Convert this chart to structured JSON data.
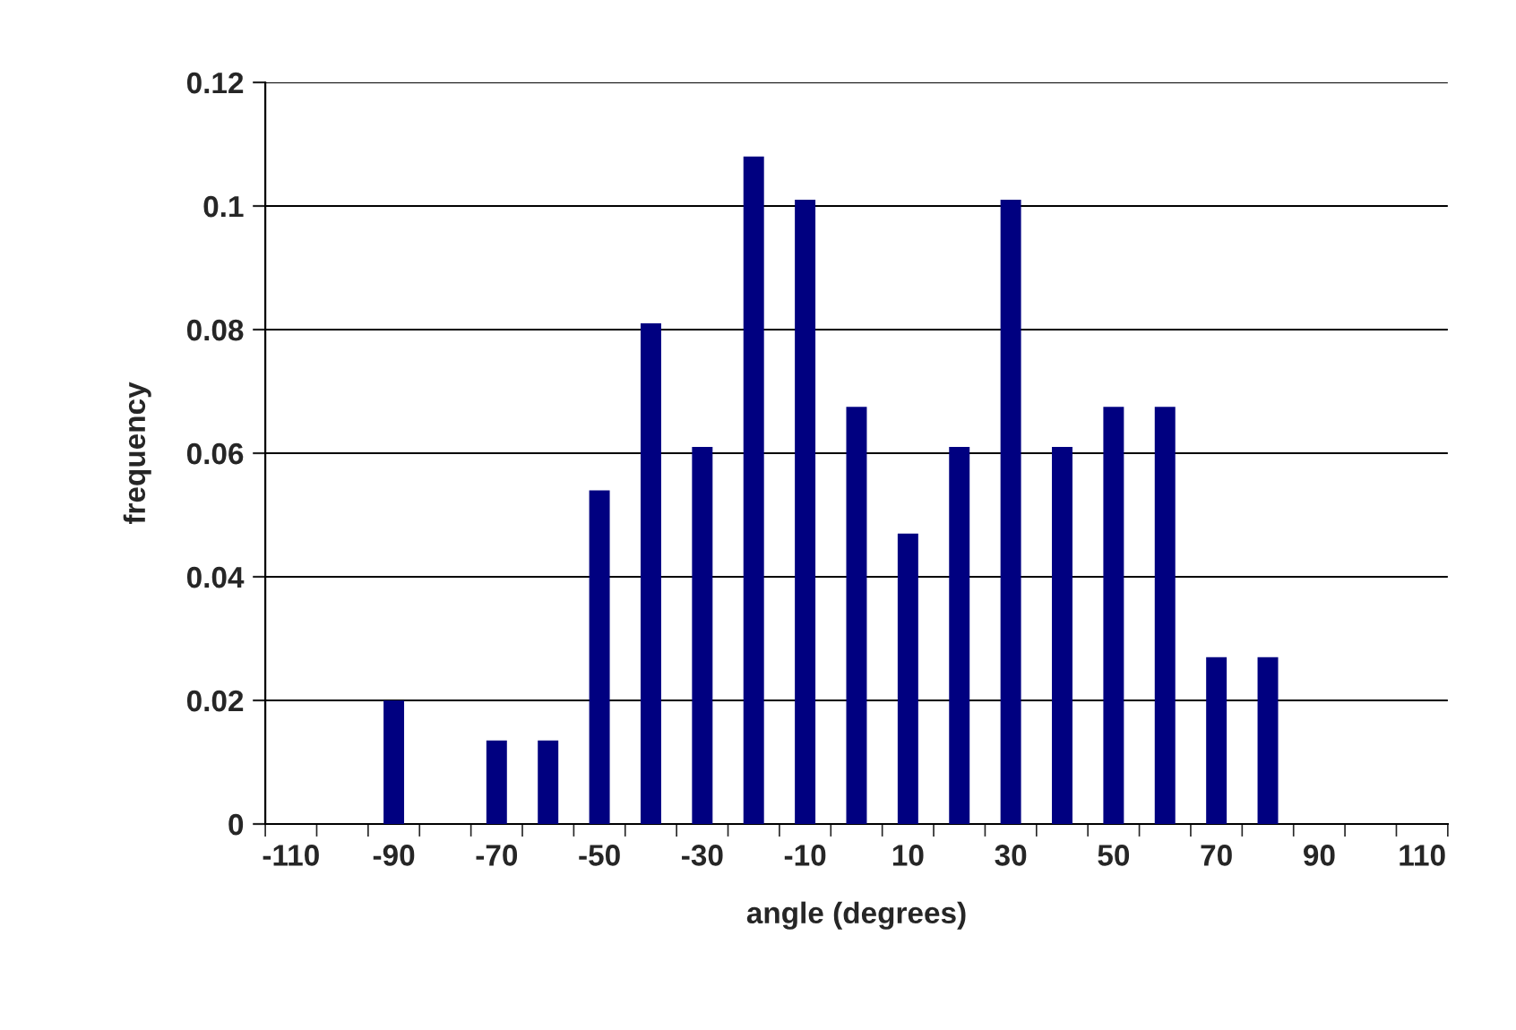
{
  "chart_data": {
    "type": "bar",
    "xlabel": "angle (degrees)",
    "ylabel": "frequency",
    "categories": [
      "-110",
      null,
      "-90",
      null,
      "-70",
      null,
      "-50",
      null,
      "-30",
      null,
      "-10",
      null,
      "10",
      null,
      "30",
      null,
      "50",
      null,
      "70",
      null,
      "90",
      null,
      "110"
    ],
    "values": [
      0,
      0,
      0.02,
      0,
      0.0135,
      0.0135,
      0.054,
      0.081,
      0.061,
      0.108,
      0.101,
      0.0675,
      0.047,
      0.061,
      0.101,
      0.061,
      0.0675,
      0.0675,
      0.027,
      0.027,
      0,
      0,
      0
    ],
    "color": "#000080",
    "ylim": [
      0,
      0.12
    ],
    "yticks": [
      0,
      0.02,
      0.04,
      0.06,
      0.08,
      {
        "value": 0.1,
        "label": "0.1"
      },
      0.12
    ],
    "grid": "y",
    "legend": false
  }
}
